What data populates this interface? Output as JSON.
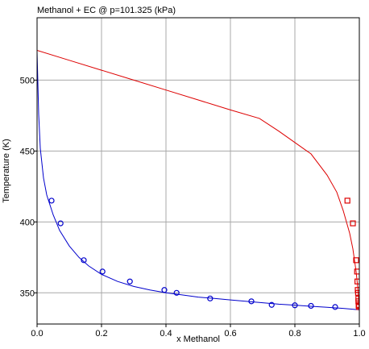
{
  "chart_data": {
    "type": "line",
    "title": "Methanol + EC @ p=101.325 (kPa)",
    "xlabel": "x Methanol",
    "ylabel": "Temperature (K)",
    "xlim": [
      0,
      1
    ],
    "ylim": [
      328,
      544
    ],
    "xticks": [
      0,
      0.2,
      0.4,
      0.6,
      0.8,
      1
    ],
    "xtick_labels": [
      "0.0",
      "0.2",
      "0.4",
      "0.6",
      "0.8",
      "1.0"
    ],
    "yticks": [
      350,
      400,
      450,
      500
    ],
    "ytick_labels": [
      "350",
      "400",
      "450",
      "500"
    ],
    "grid": true,
    "colors": {
      "bubble": "#0000cc",
      "dew": "#dd0000",
      "grid": "#a8a8a8"
    },
    "series": [
      {
        "kind": "line",
        "color": "#0000cc",
        "x": [
          0.0,
          0.005,
          0.01,
          0.02,
          0.03,
          0.05,
          0.07,
          0.1,
          0.13,
          0.16,
          0.2,
          0.25,
          0.3,
          0.35,
          0.4,
          0.45,
          0.5,
          0.55,
          0.6,
          0.65,
          0.7,
          0.75,
          0.8,
          0.85,
          0.9,
          0.95,
          1.0
        ],
        "y": [
          520,
          476,
          452,
          431,
          419,
          405,
          394,
          383,
          375,
          369,
          363,
          358,
          354.5,
          352,
          350,
          348.5,
          347,
          346,
          345,
          344,
          343,
          342,
          341.3,
          340.5,
          339.8,
          339,
          338
        ]
      },
      {
        "kind": "line",
        "color": "#dd0000",
        "x": [
          0.0,
          0.1,
          0.2,
          0.3,
          0.4,
          0.5,
          0.6,
          0.69,
          0.75,
          0.8,
          0.85,
          0.9,
          0.93,
          0.95,
          0.97,
          0.98,
          0.99,
          0.995,
          1.0
        ],
        "y": [
          521,
          514,
          507,
          500,
          493,
          486,
          479,
          473,
          464,
          456,
          448,
          433,
          421,
          408,
          392,
          381,
          365,
          354,
          338
        ]
      },
      {
        "kind": "markers",
        "marker": "circle",
        "color": "#0000cc",
        "x": [
          0.045,
          0.073,
          0.145,
          0.203,
          0.288,
          0.395,
          0.433,
          0.537,
          0.665,
          0.728,
          0.8,
          0.85,
          0.925
        ],
        "y": [
          415,
          399,
          373,
          365,
          358,
          352,
          350,
          346,
          344,
          341.5,
          341.2,
          340.8,
          340
        ]
      },
      {
        "kind": "markers",
        "marker": "square",
        "color": "#dd0000",
        "x": [
          0.963,
          0.98,
          0.99,
          0.993,
          0.994,
          0.995,
          0.996,
          0.997,
          0.997,
          0.998,
          0.998,
          0.999
        ],
        "y": [
          415,
          399,
          373,
          365,
          358,
          352,
          350,
          346,
          344,
          341.5,
          340.8,
          340
        ]
      }
    ]
  }
}
